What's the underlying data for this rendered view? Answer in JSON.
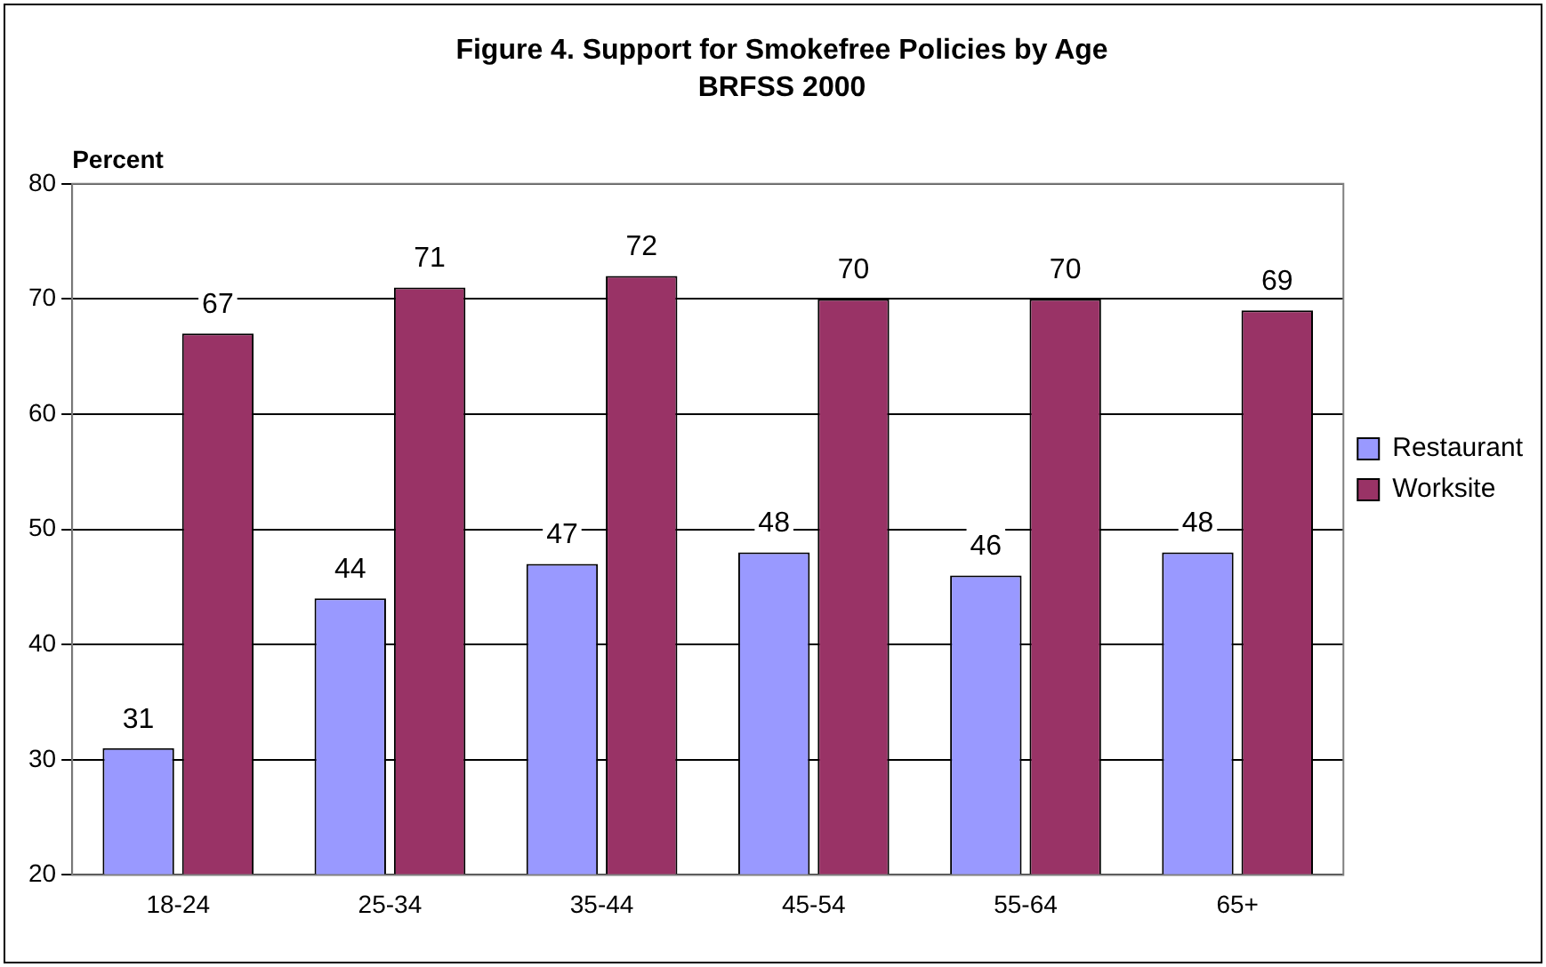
{
  "chart_data": {
    "type": "bar",
    "title": "Figure 4. Support for Smokefree Policies by Age",
    "subtitle": "BRFSS 2000",
    "ylabel": "Percent",
    "categories": [
      "18-24",
      "25-34",
      "35-44",
      "45-54",
      "55-64",
      "65+"
    ],
    "series": [
      {
        "name": "Restaurant",
        "color": "#9999ff",
        "values": [
          31,
          44,
          47,
          48,
          46,
          48
        ]
      },
      {
        "name": "Worksite",
        "color": "#993366",
        "values": [
          67,
          71,
          72,
          70,
          70,
          69
        ]
      }
    ],
    "ylim": [
      20,
      80
    ],
    "yticks": [
      20,
      30,
      40,
      50,
      60,
      70,
      80
    ],
    "grid": "y",
    "legend": "right",
    "data_labels": true
  }
}
